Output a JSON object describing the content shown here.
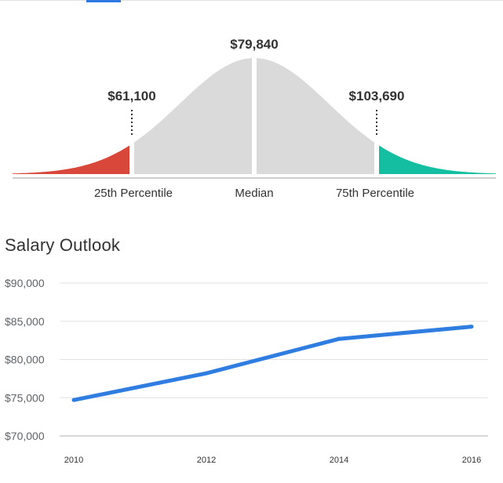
{
  "chart_data": [
    {
      "type": "area",
      "categories": [
        "25th Percentile",
        "Median",
        "75th Percentile"
      ],
      "values": [
        61100,
        79840,
        103690
      ],
      "value_labels": [
        "$61,100",
        "$79,840",
        "$103,690"
      ],
      "colors": {
        "low_tail": "#d9473b",
        "body": "#dadada",
        "high_tail": "#13bfa0"
      }
    },
    {
      "type": "line",
      "title": "Salary Outlook",
      "x": [
        2010,
        2012,
        2014,
        2016
      ],
      "x_tick_labels": [
        "2010",
        "2012",
        "2014",
        "2016"
      ],
      "series": [
        {
          "values": [
            74700,
            78200,
            82700,
            84300
          ]
        }
      ],
      "ylim": [
        70000,
        90000
      ],
      "y_ticks": [
        70000,
        75000,
        80000,
        85000,
        90000
      ],
      "y_tick_labels": [
        "$70,000",
        "$75,000",
        "$80,000",
        "$85,000",
        "$90,000"
      ],
      "grid": true,
      "line_color": "#2f7de1"
    }
  ]
}
